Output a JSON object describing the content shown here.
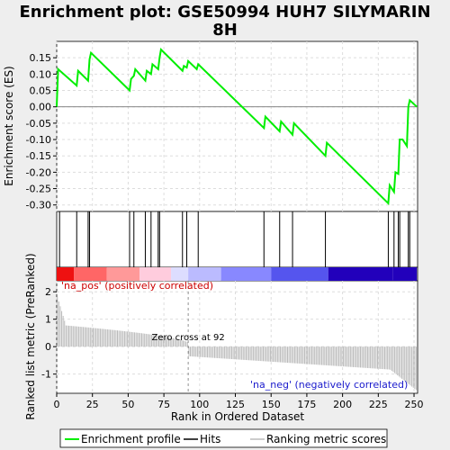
{
  "title_line1": "Enrichment plot: GSE50994 HUH7 SILYMARIN",
  "title_line2": "8H",
  "chart_data": {
    "type": "line",
    "xlabel": "Rank in Ordered Dataset",
    "xlim": [
      0,
      250
    ],
    "x_ticks": [
      0,
      25,
      50,
      75,
      100,
      125,
      150,
      175,
      200,
      225,
      250
    ],
    "enrichment": {
      "ylabel": "Enrichment score (ES)",
      "ylim": [
        -0.32,
        0.2
      ],
      "y_ticks": [
        0.15,
        0.1,
        0.05,
        0.0,
        -0.05,
        -0.1,
        -0.15,
        -0.2,
        -0.25,
        -0.3
      ],
      "y_tick_labels": [
        "0.15",
        "0.10",
        "0.05",
        "0.00",
        "-0.05",
        "-0.10",
        "-0.15",
        "-0.20",
        "-0.25",
        "-0.30"
      ],
      "color": "#00ee00",
      "points": [
        [
          0,
          0.0
        ],
        [
          1,
          0.115
        ],
        [
          14,
          0.065
        ],
        [
          15,
          0.11
        ],
        [
          22,
          0.08
        ],
        [
          23,
          0.145
        ],
        [
          24,
          0.165
        ],
        [
          51,
          0.05
        ],
        [
          52,
          0.085
        ],
        [
          54,
          0.095
        ],
        [
          55,
          0.115
        ],
        [
          62,
          0.08
        ],
        [
          63,
          0.11
        ],
        [
          66,
          0.1
        ],
        [
          67,
          0.13
        ],
        [
          71,
          0.115
        ],
        [
          72,
          0.15
        ],
        [
          73,
          0.175
        ],
        [
          88,
          0.11
        ],
        [
          89,
          0.125
        ],
        [
          91,
          0.12
        ],
        [
          92,
          0.14
        ],
        [
          98,
          0.115
        ],
        [
          99,
          0.13
        ],
        [
          145,
          -0.065
        ],
        [
          146,
          -0.03
        ],
        [
          156,
          -0.075
        ],
        [
          157,
          -0.045
        ],
        [
          165,
          -0.085
        ],
        [
          166,
          -0.05
        ],
        [
          188,
          -0.15
        ],
        [
          189,
          -0.11
        ],
        [
          232,
          -0.295
        ],
        [
          233,
          -0.24
        ],
        [
          236,
          -0.26
        ],
        [
          237,
          -0.2
        ],
        [
          239,
          -0.205
        ],
        [
          240,
          -0.1
        ],
        [
          242,
          -0.1
        ],
        [
          245,
          -0.12
        ],
        [
          246,
          0.0
        ],
        [
          247,
          0.02
        ],
        [
          252,
          0.0
        ]
      ]
    },
    "hits": [
      2,
      14,
      22,
      23,
      51,
      54,
      62,
      66,
      71,
      72,
      88,
      91,
      99,
      145,
      156,
      165,
      188,
      232,
      236,
      239,
      240,
      246,
      247
    ],
    "ranked_metric": {
      "ylabel": "Ranked list metric (PreRanked)",
      "ylim": [
        -1.7,
        2.4
      ],
      "y_ticks": [
        2,
        1,
        0,
        -1
      ],
      "y_tick_labels": [
        "2",
        "1",
        "0",
        "-1"
      ],
      "zero_cross": 92,
      "zero_cross_label": "Zero cross at 92",
      "pos_label": "'na_pos' (positively correlated)",
      "neg_label": "'na_neg' (negatively correlated)"
    },
    "gradient_colors": [
      "#ee1111",
      "#ff6666",
      "#ff9999",
      "#ffccdd",
      "#ddddff",
      "#bbbbff",
      "#8888ff",
      "#5555ee",
      "#2200bb"
    ],
    "legend": [
      {
        "label": "Enrichment profile",
        "color": "#00ee00"
      },
      {
        "label": "Hits",
        "color": "#000000"
      },
      {
        "label": "Ranking metric scores",
        "color": "#bbbbbb"
      }
    ]
  }
}
